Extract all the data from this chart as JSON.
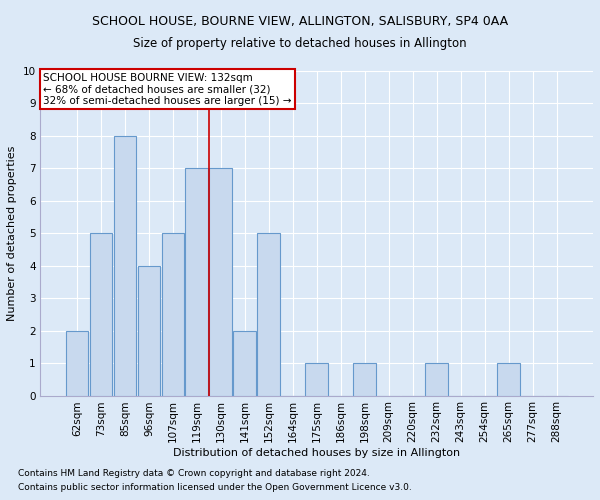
{
  "title1": "SCHOOL HOUSE, BOURNE VIEW, ALLINGTON, SALISBURY, SP4 0AA",
  "title2": "Size of property relative to detached houses in Allington",
  "xlabel": "Distribution of detached houses by size in Allington",
  "ylabel": "Number of detached properties",
  "categories": [
    "62sqm",
    "73sqm",
    "85sqm",
    "96sqm",
    "107sqm",
    "119sqm",
    "130sqm",
    "141sqm",
    "152sqm",
    "164sqm",
    "175sqm",
    "186sqm",
    "198sqm",
    "209sqm",
    "220sqm",
    "232sqm",
    "243sqm",
    "254sqm",
    "265sqm",
    "277sqm",
    "288sqm"
  ],
  "values": [
    2,
    5,
    8,
    4,
    5,
    7,
    7,
    2,
    5,
    0,
    1,
    0,
    1,
    0,
    0,
    1,
    0,
    0,
    1,
    0,
    0
  ],
  "bar_color": "#c8d9ee",
  "bar_edge_color": "#6699cc",
  "vline_x": 5.5,
  "vline_color": "#cc0000",
  "annotation_line1": "SCHOOL HOUSE BOURNE VIEW: 132sqm",
  "annotation_line2": "← 68% of detached houses are smaller (32)",
  "annotation_line3": "32% of semi-detached houses are larger (15) →",
  "ylim": [
    0,
    10
  ],
  "yticks": [
    0,
    1,
    2,
    3,
    4,
    5,
    6,
    7,
    8,
    9,
    10
  ],
  "footer1": "Contains HM Land Registry data © Crown copyright and database right 2024.",
  "footer2": "Contains public sector information licensed under the Open Government Licence v3.0.",
  "background_color": "#dce9f7",
  "plot_background_color": "#dce9f7",
  "grid_color": "#ffffff",
  "title1_fontsize": 9,
  "title2_fontsize": 8.5,
  "axis_label_fontsize": 8,
  "tick_fontsize": 7.5,
  "annotation_fontsize": 7.5,
  "footer_fontsize": 6.5
}
